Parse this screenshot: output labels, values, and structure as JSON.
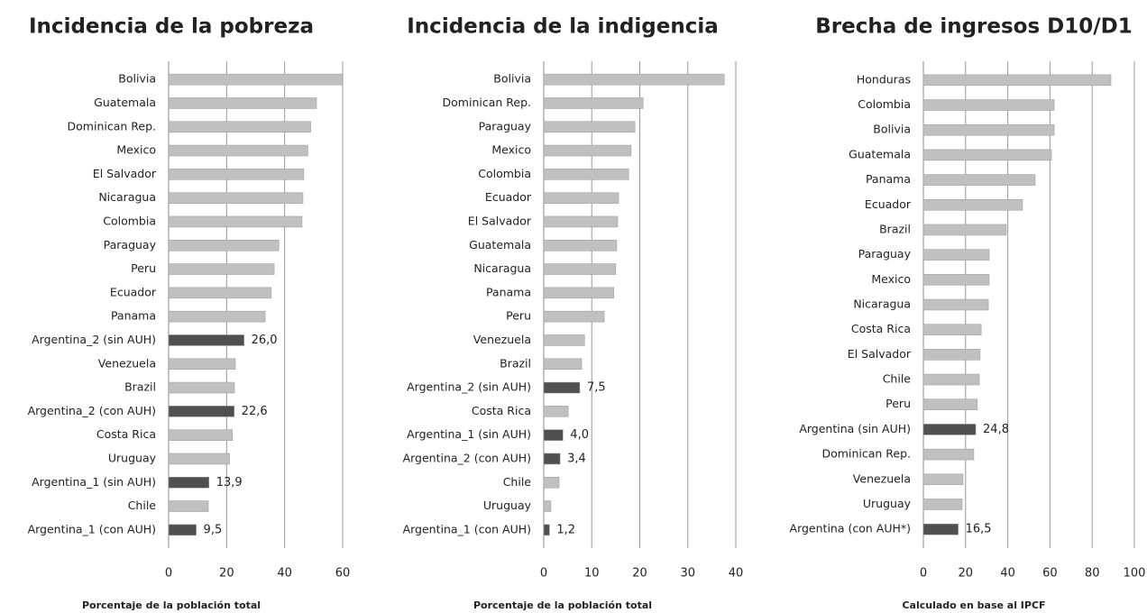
{
  "chart_data": [
    {
      "type": "bar",
      "title": "Incidencia de la pobreza",
      "categories": [
        "Bolivia",
        "Guatemala",
        "Dominican Rep.",
        "Mexico",
        "El Salvador",
        "Nicaragua",
        "Colombia",
        "Paraguay",
        "Peru",
        "Ecuador",
        "Panama",
        "Argentina_2 (sin AUH)",
        "Venezuela",
        "Brazil",
        "Argentina_2 (con AUH)",
        "Costa Rica",
        "Uruguay",
        "Argentina_1 (sin AUH)",
        "Chile",
        "Argentina_1 (con AUH)"
      ],
      "values": [
        60,
        51,
        49,
        48,
        46.6,
        46.3,
        46,
        38,
        36.4,
        35.4,
        33.3,
        26.0,
        23,
        22.7,
        22.6,
        22,
        21,
        13.9,
        13.7,
        9.5
      ],
      "value_labels": [
        null,
        null,
        null,
        null,
        null,
        null,
        null,
        null,
        null,
        null,
        null,
        "26,0",
        null,
        null,
        "22,6",
        null,
        null,
        "13,9",
        null,
        "9,5"
      ],
      "colors": [
        "#c0c0c0",
        "#c0c0c0",
        "#c0c0c0",
        "#c0c0c0",
        "#c0c0c0",
        "#c0c0c0",
        "#c0c0c0",
        "#c0c0c0",
        "#c0c0c0",
        "#c0c0c0",
        "#c0c0c0",
        "#505050",
        "#c0c0c0",
        "#c0c0c0",
        "#505050",
        "#c0c0c0",
        "#c0c0c0",
        "#505050",
        "#c0c0c0",
        "#505050"
      ],
      "xlim": [
        0,
        60
      ],
      "xticks": [
        0,
        20,
        40,
        60
      ],
      "x_label": "Porcentaje de la población total",
      "grid": true
    },
    {
      "type": "bar",
      "title": "Incidencia de la indigencia",
      "categories": [
        "Bolivia",
        "Dominican Rep.",
        "Paraguay",
        "Mexico",
        "Colombia",
        "Ecuador",
        "El Salvador",
        "Guatemala",
        "Nicaragua",
        "Panama",
        "Peru",
        "Venezuela",
        "Brazil",
        "Argentina_2 (sin AUH)",
        "Costa Rica",
        "Argentina_1 (sin AUH)",
        "Argentina_2 (con AUH)",
        "Chile",
        "Uruguay",
        "Argentina_1 (con AUH)"
      ],
      "values": [
        37.6,
        20.7,
        19,
        18.2,
        17.7,
        15.6,
        15.4,
        15.2,
        15,
        14.6,
        12.6,
        8.5,
        7.9,
        7.5,
        5.1,
        4.0,
        3.4,
        3.2,
        1.5,
        1.2
      ],
      "value_labels": [
        null,
        null,
        null,
        null,
        null,
        null,
        null,
        null,
        null,
        null,
        null,
        null,
        null,
        "7,5",
        null,
        "4,0",
        "3,4",
        null,
        null,
        "1,2"
      ],
      "colors": [
        "#c0c0c0",
        "#c0c0c0",
        "#c0c0c0",
        "#c0c0c0",
        "#c0c0c0",
        "#c0c0c0",
        "#c0c0c0",
        "#c0c0c0",
        "#c0c0c0",
        "#c0c0c0",
        "#c0c0c0",
        "#c0c0c0",
        "#c0c0c0",
        "#505050",
        "#c0c0c0",
        "#505050",
        "#505050",
        "#c0c0c0",
        "#c0c0c0",
        "#505050"
      ],
      "xlim": [
        0,
        40
      ],
      "xticks": [
        0,
        10,
        20,
        30,
        40
      ],
      "x_label": "Porcentaje de la población total",
      "grid": true
    },
    {
      "type": "bar",
      "title": "Brecha de ingresos D10/D1",
      "categories": [
        "Honduras",
        "Colombia",
        "Bolivia",
        "Guatemala",
        "Panama",
        "Ecuador",
        "Brazil",
        "Paraguay",
        "Mexico",
        "Nicaragua",
        "Costa Rica",
        "El Salvador",
        "Chile",
        "Peru",
        "Argentina (sin AUH)",
        "Dominican Rep.",
        "Venezuela",
        "Uruguay",
        "Argentina (con AUH*)"
      ],
      "values": [
        88.9,
        62,
        62,
        60.7,
        53,
        47,
        39.3,
        31.2,
        31.2,
        30.8,
        27.4,
        26.9,
        26.5,
        25.6,
        24.8,
        23.9,
        18.8,
        18.4,
        16.5
      ],
      "value_labels": [
        null,
        null,
        null,
        null,
        null,
        null,
        null,
        null,
        null,
        null,
        null,
        null,
        null,
        null,
        "24,8",
        null,
        null,
        null,
        "16,5"
      ],
      "colors": [
        "#c0c0c0",
        "#c0c0c0",
        "#c0c0c0",
        "#c0c0c0",
        "#c0c0c0",
        "#c0c0c0",
        "#c0c0c0",
        "#c0c0c0",
        "#c0c0c0",
        "#c0c0c0",
        "#c0c0c0",
        "#c0c0c0",
        "#c0c0c0",
        "#c0c0c0",
        "#505050",
        "#c0c0c0",
        "#c0c0c0",
        "#c0c0c0",
        "#505050"
      ],
      "xlim": [
        0,
        100
      ],
      "xticks": [
        0,
        20,
        40,
        60,
        80,
        100
      ],
      "x_label": "Calculado  en base al IPCF",
      "grid": true
    }
  ]
}
